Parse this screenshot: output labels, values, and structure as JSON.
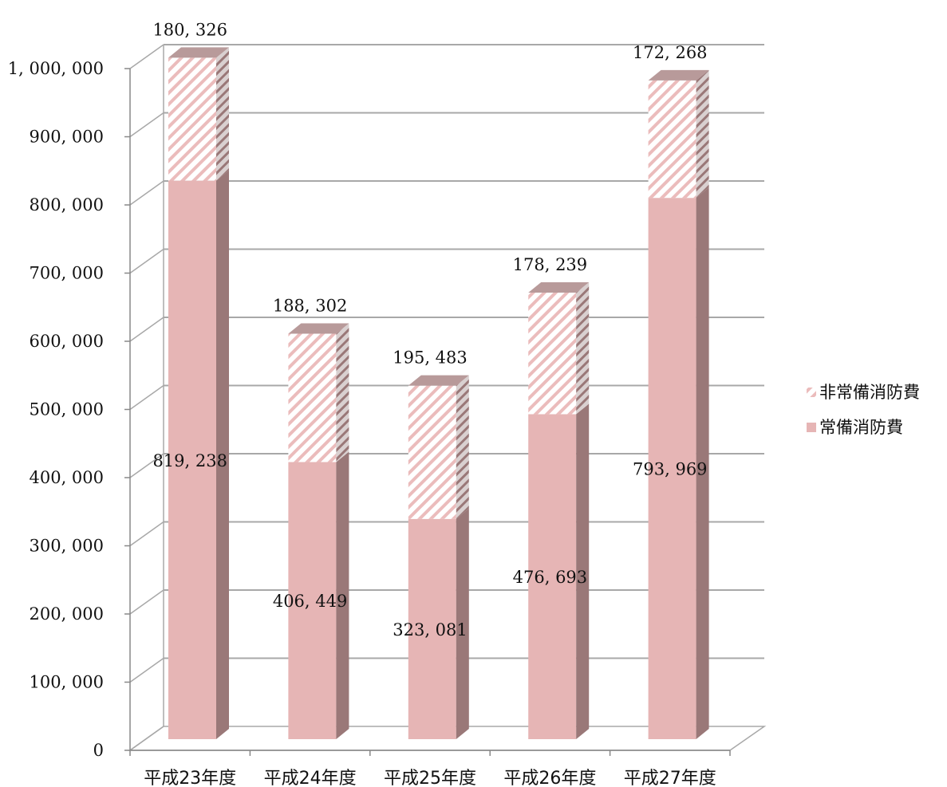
{
  "chart_data": {
    "type": "bar",
    "stacked": true,
    "three_d": true,
    "categories": [
      "平成23年度",
      "平成24年度",
      "平成25年度",
      "平成26年度",
      "平成27年度"
    ],
    "series": [
      {
        "name": "常備消防費",
        "values": [
          819238,
          406449,
          323081,
          476693,
          793969
        ],
        "labels": [
          "819, 238",
          "406, 449",
          "323, 081",
          "476, 693",
          "793, 969"
        ],
        "color": "#e6b5b5",
        "pattern": "solid"
      },
      {
        "name": "非常備消防費",
        "values": [
          180326,
          188302,
          195483,
          178239,
          172268
        ],
        "labels": [
          "180, 326",
          "188, 302",
          "195, 483",
          "178, 239",
          "172, 268"
        ],
        "color": "#e6b5b5",
        "pattern": "diagonal-hatch"
      }
    ],
    "y_ticks": [
      "0",
      "100, 000",
      "200, 000",
      "300, 000",
      "400, 000",
      "500, 000",
      "600, 000",
      "700, 000",
      "800, 000",
      "900, 000",
      "1, 000, 000"
    ],
    "ylim": [
      0,
      1000000
    ],
    "grid": true,
    "legend_position": "right"
  }
}
